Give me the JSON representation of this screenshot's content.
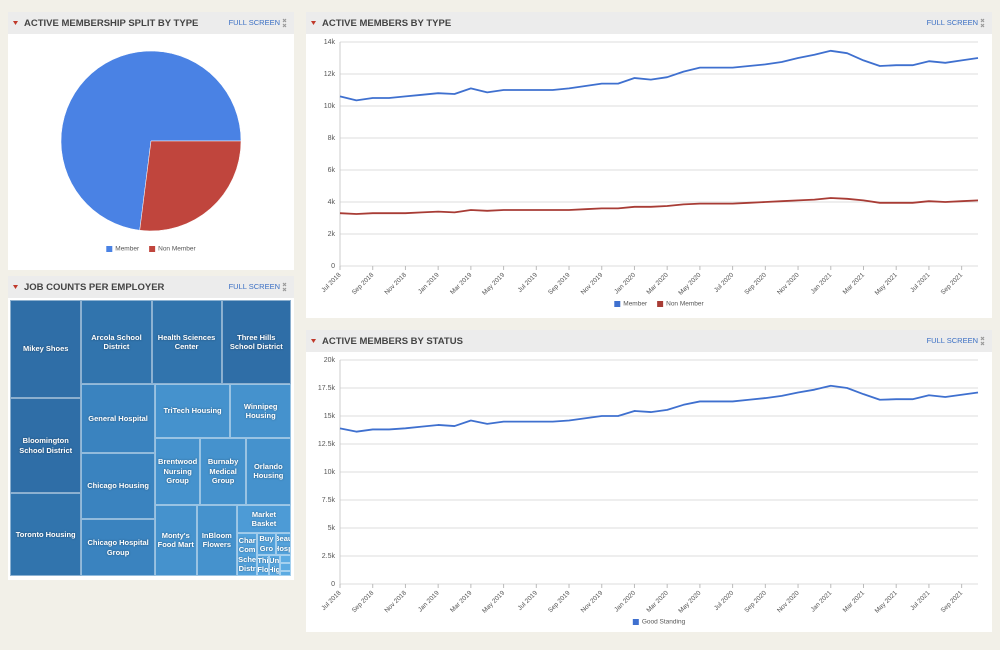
{
  "chart_data": [
    {
      "type": "pie",
      "title": "ACTIVE MEMBERSHIP SPLIT BY TYPE",
      "full_screen": "FULL SCREEN",
      "categories": [
        "Member",
        "Non Member"
      ],
      "values": [
        73,
        27
      ],
      "colors": [
        "#4a82e4",
        "#c0453d"
      ],
      "legend": "bottom"
    },
    {
      "type": "line",
      "title": "ACTIVE MEMBERS BY TYPE",
      "full_screen": "FULL SCREEN",
      "categories": [
        "Jul 2018",
        null,
        "Sep 2018",
        null,
        "Nov 2018",
        null,
        "Jan 2019",
        null,
        "Mar 2019",
        null,
        "May 2019",
        null,
        "Jul 2019",
        null,
        "Sep 2019",
        null,
        "Nov 2019",
        null,
        "Jan 2020",
        null,
        "Mar 2020",
        null,
        "May 2020",
        null,
        "Jul 2020",
        null,
        "Sep 2020",
        null,
        "Nov 2020",
        null,
        "Jan 2021",
        null,
        "Mar 2021",
        null,
        "May 2021",
        null,
        "Jul 2021",
        null,
        "Sep 2021",
        null
      ],
      "series": [
        {
          "name": "Member",
          "color": "#3f70cf",
          "values": [
            10600,
            10350,
            10500,
            10500,
            10600,
            10700,
            10800,
            10750,
            11100,
            10850,
            11000,
            11000,
            11000,
            11000,
            11100,
            11250,
            11400,
            11400,
            11750,
            11650,
            11800,
            12150,
            12400,
            12400,
            12400,
            12500,
            12600,
            12750,
            13000,
            13200,
            13450,
            13300,
            12850,
            12500,
            12550,
            12550,
            12800,
            12700,
            12850,
            13000
          ]
        },
        {
          "name": "Non Member",
          "color": "#a83c35",
          "values": [
            3300,
            3250,
            3300,
            3300,
            3300,
            3350,
            3400,
            3350,
            3500,
            3450,
            3500,
            3500,
            3500,
            3500,
            3500,
            3550,
            3600,
            3600,
            3700,
            3700,
            3750,
            3850,
            3900,
            3900,
            3900,
            3950,
            4000,
            4050,
            4100,
            4150,
            4250,
            4200,
            4100,
            3950,
            3950,
            3950,
            4050,
            4000,
            4050,
            4100
          ]
        }
      ],
      "ylim": [
        0,
        14000
      ],
      "yticks": [
        0,
        {
          "value": 2000,
          "label": "2k"
        },
        {
          "value": 4000,
          "label": "4k"
        },
        {
          "value": 6000,
          "label": "6k"
        },
        {
          "value": 8000,
          "label": "8k"
        },
        {
          "value": 10000,
          "label": "10k"
        },
        {
          "value": 12000,
          "label": "12k"
        },
        {
          "value": 14000,
          "label": "14k"
        }
      ],
      "grid": true,
      "legend": "bottom"
    },
    {
      "type": "treemap",
      "title": "JOB COUNTS PER EMPLOYER",
      "full_screen": "FULL SCREEN",
      "items": [
        {
          "name": "Mikey Shoes",
          "value": 6958,
          "color": "#2f6ea7"
        },
        {
          "name": "Bloomington School District",
          "value": 6816,
          "color": "#2f6ea7"
        },
        {
          "name": "Toronto Housing",
          "value": 5880,
          "color": "#3174ad"
        },
        {
          "name": "Arcola School District",
          "value": 5880,
          "color": "#3174ad"
        },
        {
          "name": "Health Sciences Center",
          "value": 5880,
          "color": "#3174ad"
        },
        {
          "name": "Three Hills School District",
          "value": 5822,
          "color": "#2f6ea7"
        },
        {
          "name": "General Hospital",
          "value": 5037,
          "color": "#3a83bf"
        },
        {
          "name": "Chicago Housing",
          "value": 4818,
          "color": "#3a83bf"
        },
        {
          "name": "Chicago Hospital Group",
          "value": 4161,
          "color": "#3a83bf"
        },
        {
          "name": "TriTech Housing",
          "value": 4028,
          "color": "#4592cd"
        },
        {
          "name": "Winnipeg Housing",
          "value": 3233,
          "color": "#4592cd"
        },
        {
          "name": "Brentwood Nursing Group",
          "value": 3066,
          "color": "#4592cd"
        },
        {
          "name": "Burnaby Medical Group",
          "value": 3036,
          "color": "#4592cd"
        },
        {
          "name": "Orlando Housing",
          "value": 3036,
          "color": "#4592cd"
        },
        {
          "name": "Monty's Food Mart",
          "value": 2970,
          "color": "#4592cd"
        },
        {
          "name": "InBloom Flowers",
          "value": 2847,
          "color": "#4592cd"
        },
        {
          "name": "Market Basket",
          "value": 1512,
          "color": "#4d9bd6"
        },
        {
          "name": "Char Com Sche Distr",
          "value": 874,
          "color": "#53a2dc"
        },
        {
          "name": "Buy Gro",
          "value": 390,
          "color": "#53a2dc"
        },
        {
          "name": "Beau Hosp",
          "value": 330,
          "color": "#53a2dc"
        },
        {
          "name": "Thi Flo",
          "value": 240,
          "color": "#58a7e0"
        },
        {
          "name": "Un Hig",
          "value": 240,
          "color": "#58a7e0"
        },
        {
          "name": null,
          "value": 100,
          "color": "#5cabe2"
        },
        {
          "name": null,
          "value": 80,
          "color": "#5cabe2"
        },
        {
          "name": null,
          "value": 60,
          "color": "#5cabe2"
        }
      ]
    },
    {
      "type": "line",
      "title": "ACTIVE MEMBERS BY STATUS",
      "full_screen": "FULL SCREEN",
      "categories": [
        "Jul 2018",
        null,
        "Sep 2018",
        null,
        "Nov 2018",
        null,
        "Jan 2019",
        null,
        "Mar 2019",
        null,
        "May 2019",
        null,
        "Jul 2019",
        null,
        "Sep 2019",
        null,
        "Nov 2019",
        null,
        "Jan 2020",
        null,
        "Mar 2020",
        null,
        "May 2020",
        null,
        "Jul 2020",
        null,
        "Sep 2020",
        null,
        "Nov 2020",
        null,
        "Jan 2021",
        null,
        "Mar 2021",
        null,
        "May 2021",
        null,
        "Jul 2021",
        null,
        "Sep 2021",
        null
      ],
      "series": [
        {
          "name": "Good Standing",
          "color": "#3f70cf",
          "values": [
            13900,
            13600,
            13800,
            13800,
            13900,
            14050,
            14200,
            14100,
            14600,
            14300,
            14500,
            14500,
            14500,
            14500,
            14600,
            14800,
            15000,
            15000,
            15450,
            15350,
            15550,
            16000,
            16300,
            16300,
            16300,
            16450,
            16600,
            16800,
            17100,
            17350,
            17700,
            17500,
            16950,
            16450,
            16500,
            16500,
            16850,
            16700,
            16900,
            17100
          ]
        }
      ],
      "ylim": [
        0,
        20000
      ],
      "yticks": [
        0,
        {
          "value": 2500,
          "label": "2.5k"
        },
        {
          "value": 5000,
          "label": "5k"
        },
        {
          "value": 7500,
          "label": "7.5k"
        },
        {
          "value": 10000,
          "label": "10k"
        },
        {
          "value": 12500,
          "label": "12.5k"
        },
        {
          "value": 15000,
          "label": "15k"
        },
        {
          "value": 17500,
          "label": "17.5k"
        },
        {
          "value": 20000,
          "label": "20k"
        }
      ],
      "grid": true,
      "legend": "bottom"
    }
  ]
}
